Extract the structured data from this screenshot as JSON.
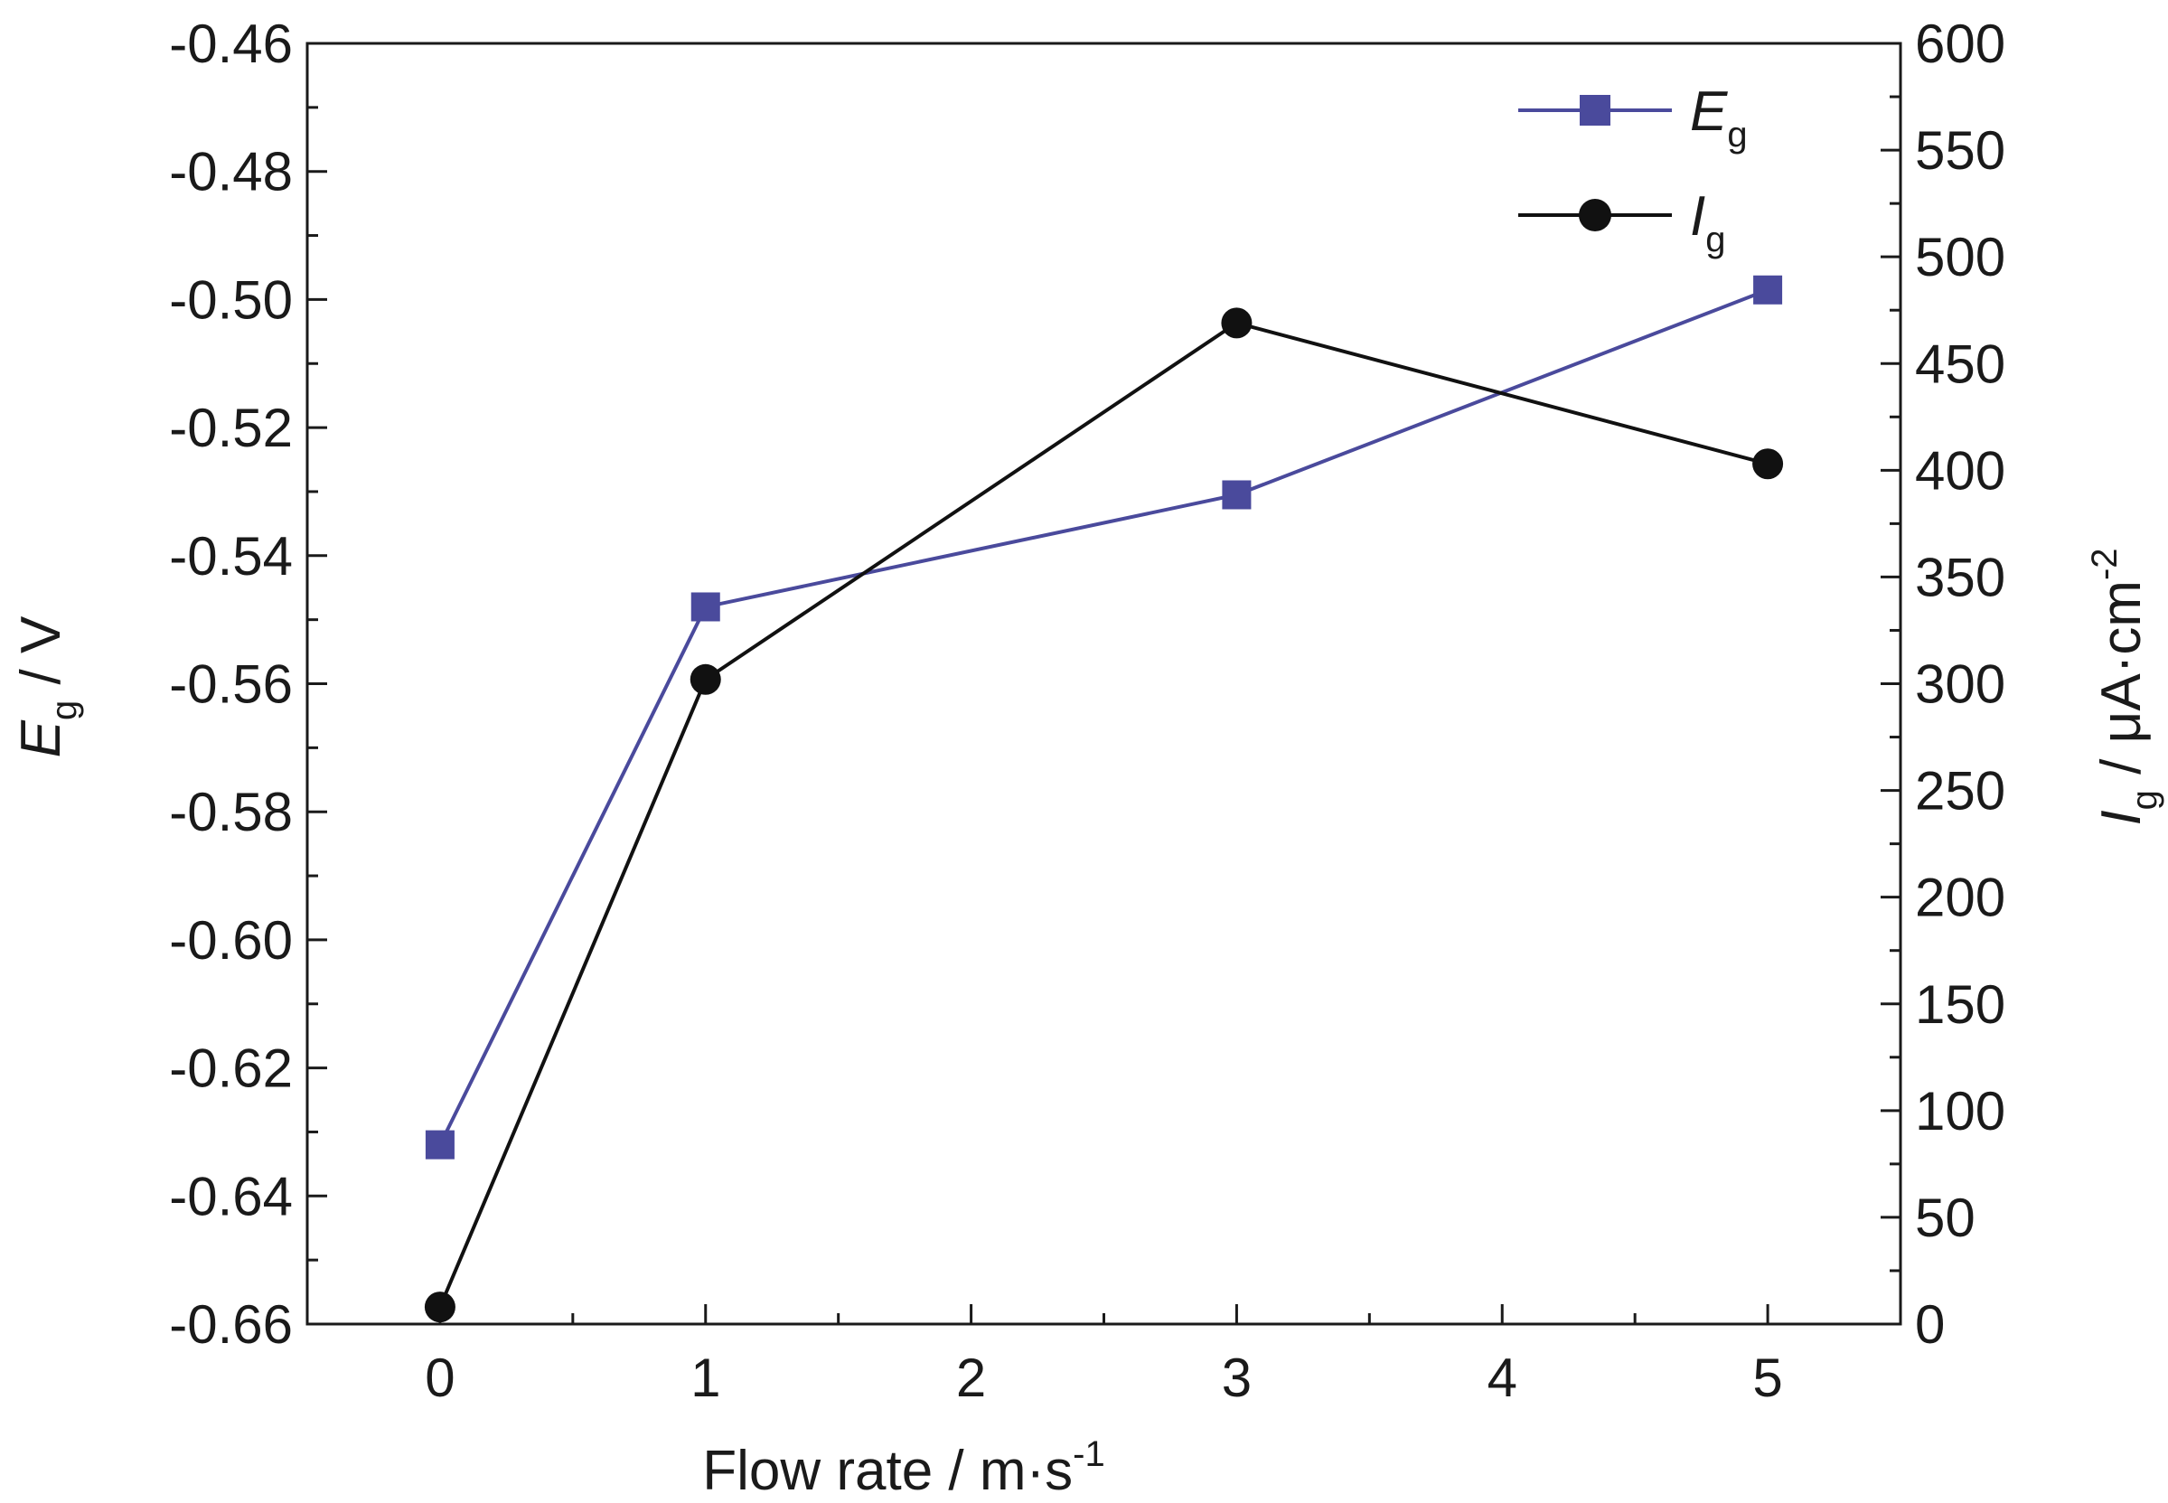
{
  "chart_data": {
    "type": "line",
    "title": "",
    "x": [
      0,
      1,
      3,
      5
    ],
    "xlim": [
      -0.5,
      5.5
    ],
    "xticks": [
      "0",
      "1",
      "2",
      "3",
      "4",
      "5"
    ],
    "xlabel": {
      "main": "Flow rate / m·s",
      "sup": "-1"
    },
    "y_left": {
      "label": {
        "italic": "E",
        "sub": "g",
        "rest": " / V"
      },
      "lim": [
        -0.66,
        -0.46
      ],
      "ticks": [
        "-0.46",
        "-0.48",
        "-0.50",
        "-0.52",
        "-0.54",
        "-0.56",
        "-0.58",
        "-0.60",
        "-0.62",
        "-0.64",
        "-0.66"
      ]
    },
    "y_right": {
      "label": {
        "italic": "I",
        "sub": "g",
        "rest": " / μA·cm",
        "sup": "-2"
      },
      "lim": [
        0,
        600
      ],
      "ticks": [
        "600",
        "550",
        "500",
        "450",
        "400",
        "350",
        "300",
        "250",
        "200",
        "150",
        "100",
        "50",
        "0"
      ]
    },
    "series": [
      {
        "name": {
          "italic": "E",
          "sub": "g"
        },
        "axis": "left",
        "marker": "square",
        "color": "#4a4a9c",
        "values": [
          -0.632,
          -0.548,
          -0.5305,
          -0.4985
        ]
      },
      {
        "name": {
          "italic": "I",
          "sub": "g"
        },
        "axis": "right",
        "marker": "circle",
        "color": "#111111",
        "values": [
          8,
          302,
          469,
          403
        ]
      }
    ],
    "legend": "top-right",
    "grid": false
  }
}
